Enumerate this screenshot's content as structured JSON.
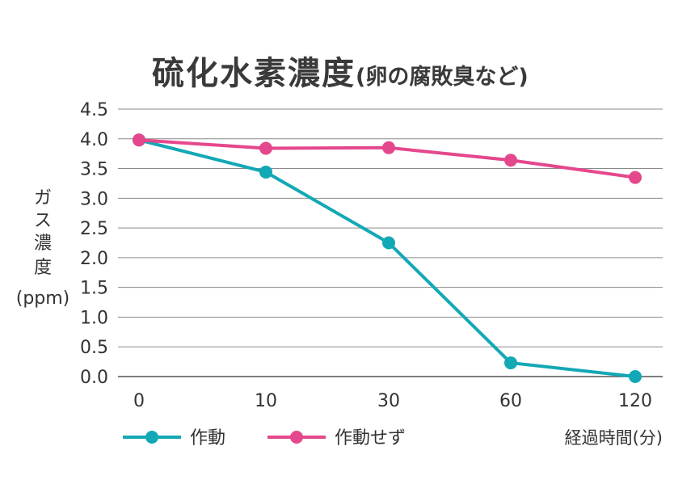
{
  "chart_data": {
    "type": "line",
    "title": "硫化水素濃度",
    "subtitle": "(卵の腐敗臭など)",
    "ylabel": [
      "ガ",
      "ス",
      "濃",
      "度",
      "(ppm)"
    ],
    "xlabel": "経過時間(分)",
    "categories": [
      "0",
      "10",
      "30",
      "60",
      "120"
    ],
    "ylim": [
      0,
      4.5
    ],
    "yticks": [
      "0.0",
      "0.5",
      "1.0",
      "1.5",
      "2.0",
      "2.5",
      "3.0",
      "3.5",
      "4.0",
      "4.5"
    ],
    "grid": true,
    "legend_position": "bottom-left",
    "series": [
      {
        "name": "作動",
        "color": "#13a8b5",
        "values": [
          3.98,
          3.44,
          2.25,
          0.23,
          0.0
        ]
      },
      {
        "name": "作動せず",
        "color": "#e5478d",
        "values": [
          3.98,
          3.84,
          3.85,
          3.64,
          3.35
        ]
      }
    ]
  }
}
